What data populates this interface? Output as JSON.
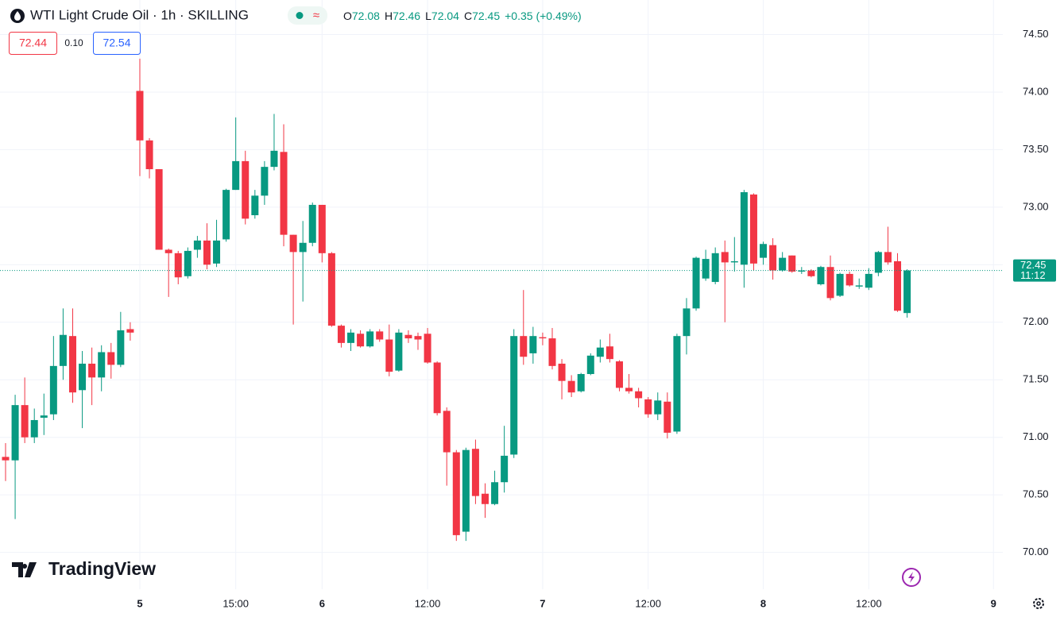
{
  "header": {
    "title": "WTI Light Crude Oil · 1h · SKILLING",
    "ohlc": [
      {
        "key": "O",
        "value": "72.08"
      },
      {
        "key": "H",
        "value": "72.46"
      },
      {
        "key": "L",
        "value": "72.04"
      },
      {
        "key": "C",
        "value": "72.45"
      }
    ],
    "change": "+0.35 (+0.49%)"
  },
  "quote": {
    "bid": "72.44",
    "spread": "0.10",
    "ask": "72.54"
  },
  "price_tag": {
    "price": "72.45",
    "countdown": "11:12"
  },
  "logo": "TradingView",
  "chart_data": {
    "type": "candlestick",
    "up_color": "#089981",
    "down_color": "#f23645",
    "grid": true,
    "ylim": [
      69.68,
      74.8
    ],
    "yticks": [
      {
        "value": 70,
        "label": "70.00"
      },
      {
        "value": 70.5,
        "label": "70.50"
      },
      {
        "value": 71,
        "label": "71.00"
      },
      {
        "value": 71.5,
        "label": "71.50"
      },
      {
        "value": 72,
        "label": "72.00"
      },
      {
        "value": 72.5,
        "label": "72.50"
      },
      {
        "value": 73,
        "label": "73.00"
      },
      {
        "value": 73.5,
        "label": "73.50"
      },
      {
        "value": 74,
        "label": "74.00"
      },
      {
        "value": 74.5,
        "label": "74.50"
      }
    ],
    "xticks": [
      {
        "value": 14,
        "label": "5"
      },
      {
        "value": 24,
        "label": "15:00"
      },
      {
        "value": 33,
        "label": "6"
      },
      {
        "value": 44,
        "label": "12:00"
      },
      {
        "value": 56,
        "label": "7"
      },
      {
        "value": 67,
        "label": "12:00"
      },
      {
        "value": 79,
        "label": "8"
      },
      {
        "value": 90,
        "label": "12:00"
      },
      {
        "value": 103,
        "label": "9"
      }
    ],
    "open": [
      70.83,
      70.8,
      71.28,
      71.0,
      71.17,
      71.2,
      71.62,
      71.88,
      71.41,
      71.64,
      71.52,
      71.74,
      71.63,
      71.94,
      74.01,
      73.58,
      73.33,
      72.63,
      72.6,
      72.4,
      72.63,
      72.71,
      72.51,
      72.72,
      73.15,
      73.4,
      72.93,
      73.1,
      73.35,
      73.48,
      72.76,
      72.61,
      72.69,
      73.02,
      72.6,
      71.97,
      71.82,
      71.9,
      71.79,
      71.92,
      71.85,
      71.58,
      71.89,
      71.88,
      71.9,
      71.65,
      71.23,
      70.87,
      70.18,
      70.9,
      70.51,
      70.42,
      70.61,
      70.85,
      71.88,
      71.73,
      71.87,
      71.86,
      71.64,
      71.49,
      71.4,
      71.55,
      71.7,
      71.79,
      71.66,
      71.43,
      71.4,
      71.33,
      71.2,
      71.31,
      71.05,
      71.88,
      72.12,
      72.38,
      72.35,
      72.61,
      72.52,
      72.5,
      73.11,
      72.56,
      72.67,
      72.45,
      72.58,
      72.44,
      72.45,
      72.33,
      72.48,
      72.23,
      72.42,
      72.31,
      72.3,
      72.43,
      72.61,
      72.53,
      72.08
    ],
    "high": [
      70.95,
      71.37,
      71.52,
      71.25,
      71.38,
      71.88,
      72.12,
      72.12,
      71.75,
      71.78,
      71.8,
      71.82,
      72.09,
      72.0,
      74.29,
      73.6,
      73.33,
      72.64,
      72.62,
      72.65,
      72.75,
      72.86,
      72.89,
      73.16,
      73.78,
      73.49,
      73.15,
      73.4,
      73.81,
      73.72,
      72.76,
      72.88,
      73.04,
      73.02,
      72.61,
      71.98,
      71.94,
      71.93,
      71.94,
      71.94,
      71.98,
      71.94,
      71.93,
      71.91,
      71.95,
      71.66,
      71.26,
      70.89,
      70.91,
      70.98,
      70.6,
      70.71,
      71.1,
      71.94,
      72.28,
      71.96,
      71.91,
      71.95,
      71.68,
      71.54,
      71.56,
      71.73,
      71.85,
      71.9,
      71.67,
      71.55,
      71.43,
      71.35,
      71.39,
      71.39,
      71.9,
      72.21,
      72.57,
      72.63,
      72.65,
      72.71,
      72.74,
      73.15,
      73.12,
      72.7,
      72.73,
      72.61,
      72.58,
      72.48,
      72.46,
      72.49,
      72.58,
      72.43,
      72.44,
      72.38,
      72.47,
      72.62,
      72.83,
      72.6,
      72.46
    ],
    "low": [
      70.62,
      70.29,
      70.95,
      70.95,
      71.02,
      71.15,
      71.5,
      71.3,
      71.08,
      71.28,
      71.4,
      71.51,
      71.61,
      71.84,
      73.27,
      73.25,
      72.63,
      72.22,
      72.33,
      72.38,
      72.56,
      72.46,
      72.48,
      72.7,
      73.15,
      72.85,
      72.9,
      73.02,
      73.32,
      72.66,
      71.98,
      72.18,
      72.66,
      72.52,
      71.96,
      71.78,
      71.75,
      71.78,
      71.78,
      71.83,
      71.53,
      71.57,
      71.82,
      71.76,
      71.64,
      71.19,
      70.58,
      70.1,
      70.1,
      70.42,
      70.3,
      70.41,
      70.52,
      70.82,
      71.63,
      71.64,
      71.8,
      71.59,
      71.33,
      71.35,
      71.39,
      71.54,
      71.65,
      71.65,
      71.4,
      71.38,
      71.26,
      71.17,
      71.15,
      70.99,
      71.03,
      71.72,
      72.1,
      72.36,
      72.33,
      72.0,
      72.44,
      72.3,
      72.45,
      72.5,
      72.37,
      72.44,
      72.43,
      72.42,
      72.39,
      72.32,
      72.19,
      72.22,
      72.31,
      72.29,
      72.28,
      72.4,
      72.5,
      72.09,
      72.04
    ],
    "close": [
      70.8,
      71.28,
      71.0,
      71.15,
      71.19,
      71.62,
      71.89,
      71.39,
      71.64,
      71.52,
      71.74,
      71.63,
      71.93,
      71.91,
      73.58,
      73.33,
      72.63,
      72.6,
      72.39,
      72.62,
      72.71,
      72.5,
      72.71,
      73.15,
      73.4,
      72.9,
      73.1,
      73.35,
      73.49,
      72.76,
      72.61,
      72.69,
      73.02,
      72.6,
      71.97,
      71.82,
      71.91,
      71.79,
      71.92,
      71.85,
      71.57,
      71.91,
      71.86,
      71.85,
      71.65,
      71.21,
      70.87,
      70.15,
      70.89,
      70.49,
      70.42,
      70.61,
      70.84,
      71.88,
      71.7,
      71.88,
      71.86,
      71.62,
      71.49,
      71.39,
      71.55,
      71.71,
      71.78,
      71.68,
      71.43,
      71.4,
      71.34,
      71.2,
      71.32,
      71.04,
      71.88,
      72.12,
      72.56,
      72.55,
      72.6,
      72.52,
      72.53,
      73.13,
      72.51,
      72.68,
      72.45,
      72.56,
      72.44,
      72.45,
      72.4,
      72.48,
      72.21,
      72.42,
      72.32,
      72.32,
      72.42,
      72.61,
      72.52,
      72.1,
      72.45
    ]
  }
}
